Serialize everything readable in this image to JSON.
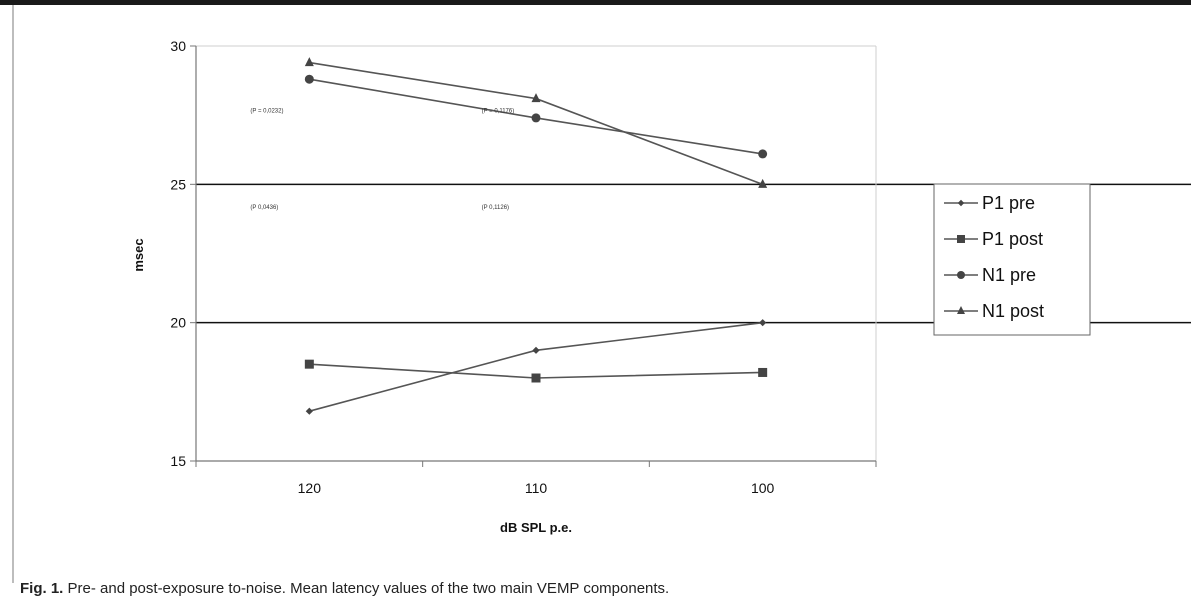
{
  "chart_data": {
    "type": "line",
    "xlabel": "dB SPL p.e.",
    "ylabel": "msec",
    "categories": [
      "120",
      "110",
      "100"
    ],
    "ylim": [
      15,
      30
    ],
    "yticks": [
      "15",
      "20",
      "25",
      "30"
    ],
    "gridlines": [
      20,
      25
    ],
    "legend_position": "right",
    "series": [
      {
        "name": "P1 pre",
        "marker": "diamond",
        "values": [
          16.8,
          19.0,
          20.0
        ]
      },
      {
        "name": "P1 post",
        "marker": "square",
        "values": [
          18.5,
          18.0,
          18.2
        ]
      },
      {
        "name": "N1 pre",
        "marker": "circle",
        "values": [
          28.8,
          27.4,
          26.1
        ]
      },
      {
        "name": "N1 post",
        "marker": "triangle",
        "values": [
          29.4,
          28.1,
          25.0
        ]
      }
    ],
    "annotations": [
      {
        "text": "(P = 0,0232)",
        "x_cat": 0.08,
        "y": 27.6
      },
      {
        "text": "(P = 0,1176)",
        "x_cat": 0.42,
        "y": 27.6
      },
      {
        "text": "(P   0,0436)",
        "x_cat": 0.08,
        "y": 24.1
      },
      {
        "text": "(P   0,1126)",
        "x_cat": 0.42,
        "y": 24.1
      }
    ]
  },
  "caption": {
    "label": "Fig. 1.",
    "text": " Pre- and post-exposure to-noise. Mean latency values of the two main VEMP components."
  },
  "colors": {
    "line": "#555555",
    "marker": "#444444",
    "axis": "#777777",
    "gridline": "#111111"
  }
}
